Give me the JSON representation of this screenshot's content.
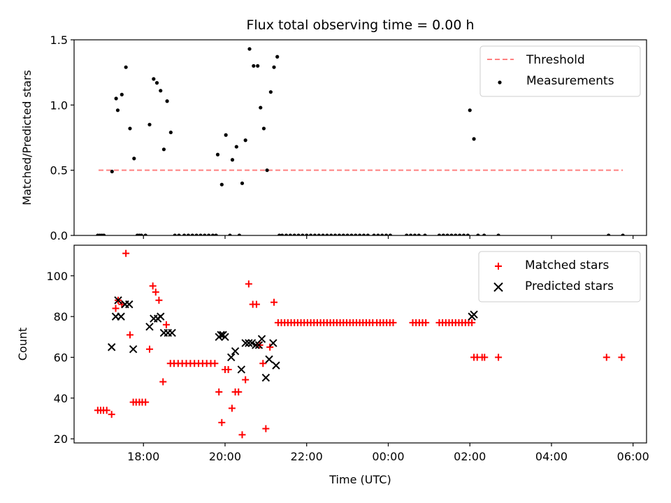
{
  "chart_data": [
    {
      "type": "scatter",
      "title": "Flux total observing time = 0.00 h",
      "xlabel": "",
      "ylabel": "Matched/Predicted stars",
      "x_ticks": [
        "18:00",
        "20:00",
        "22:00",
        "00:00",
        "02:00",
        "04:00",
        "06:00"
      ],
      "x_tick_hours": [
        18,
        20,
        22,
        24,
        26,
        28,
        30
      ],
      "xlim": [
        16.3,
        30.33
      ],
      "ylim": [
        0,
        1.5
      ],
      "y_ticks": [
        0.0,
        0.5,
        1.0,
        1.5
      ],
      "y_tick_labels": [
        "0.0",
        "0.5",
        "1.0",
        "1.5"
      ],
      "legend_position": "top-right",
      "threshold": {
        "name": "Threshold",
        "value": 0.5,
        "x_range": [
          16.9,
          29.75
        ],
        "color": "#ff8080"
      },
      "series": [
        {
          "name": "Measurements",
          "color": "#000000",
          "points": [
            [
              16.88,
              0
            ],
            [
              16.93,
              0
            ],
            [
              16.98,
              0
            ],
            [
              17.03,
              0
            ],
            [
              17.23,
              0.49
            ],
            [
              17.33,
              1.05
            ],
            [
              17.37,
              0.96
            ],
            [
              17.47,
              1.08
            ],
            [
              17.57,
              1.29
            ],
            [
              17.67,
              0.82
            ],
            [
              17.77,
              0.59
            ],
            [
              17.85,
              0
            ],
            [
              17.9,
              0
            ],
            [
              17.95,
              0
            ],
            [
              18.05,
              0
            ],
            [
              18.15,
              0.85
            ],
            [
              18.25,
              1.2
            ],
            [
              18.33,
              1.17
            ],
            [
              18.42,
              1.11
            ],
            [
              18.5,
              0.66
            ],
            [
              18.58,
              1.03
            ],
            [
              18.67,
              0.79
            ],
            [
              18.77,
              0
            ],
            [
              18.87,
              0
            ],
            [
              19.0,
              0
            ],
            [
              19.1,
              0
            ],
            [
              19.2,
              0
            ],
            [
              19.3,
              0
            ],
            [
              19.4,
              0
            ],
            [
              19.5,
              0
            ],
            [
              19.6,
              0
            ],
            [
              19.7,
              0
            ],
            [
              19.78,
              0
            ],
            [
              19.82,
              0.62
            ],
            [
              19.92,
              0.39
            ],
            [
              20.02,
              0.77
            ],
            [
              20.12,
              0
            ],
            [
              20.18,
              0.58
            ],
            [
              20.28,
              0.68
            ],
            [
              20.35,
              0
            ],
            [
              20.42,
              0.4
            ],
            [
              20.5,
              0.73
            ],
            [
              20.6,
              1.43
            ],
            [
              20.7,
              1.3
            ],
            [
              20.8,
              1.3
            ],
            [
              20.87,
              0.98
            ],
            [
              20.95,
              0.82
            ],
            [
              21.03,
              0.5
            ],
            [
              21.12,
              1.1
            ],
            [
              21.2,
              1.29
            ],
            [
              21.28,
              1.37
            ],
            [
              21.33,
              0
            ],
            [
              21.4,
              0
            ],
            [
              21.5,
              0
            ],
            [
              21.6,
              0
            ],
            [
              21.7,
              0
            ],
            [
              21.8,
              0
            ],
            [
              21.9,
              0
            ],
            [
              22.0,
              0
            ],
            [
              22.1,
              0
            ],
            [
              22.2,
              0
            ],
            [
              22.3,
              0
            ],
            [
              22.4,
              0
            ],
            [
              22.5,
              0
            ],
            [
              22.6,
              0
            ],
            [
              22.7,
              0
            ],
            [
              22.8,
              0
            ],
            [
              22.9,
              0
            ],
            [
              23.0,
              0
            ],
            [
              23.1,
              0
            ],
            [
              23.2,
              0
            ],
            [
              23.3,
              0
            ],
            [
              23.4,
              0
            ],
            [
              23.5,
              0
            ],
            [
              23.65,
              0
            ],
            [
              23.75,
              0
            ],
            [
              23.85,
              0
            ],
            [
              23.95,
              0
            ],
            [
              24.05,
              0
            ],
            [
              24.45,
              0
            ],
            [
              24.55,
              0
            ],
            [
              24.65,
              0
            ],
            [
              24.75,
              0
            ],
            [
              24.9,
              0
            ],
            [
              25.25,
              0
            ],
            [
              25.35,
              0
            ],
            [
              25.45,
              0
            ],
            [
              25.55,
              0
            ],
            [
              25.65,
              0
            ],
            [
              25.75,
              0
            ],
            [
              25.85,
              0
            ],
            [
              25.95,
              0
            ],
            [
              26.0,
              0.96
            ],
            [
              26.1,
              0.74
            ],
            [
              26.2,
              0
            ],
            [
              26.35,
              0
            ],
            [
              26.7,
              0
            ],
            [
              29.4,
              0
            ],
            [
              29.75,
              0
            ]
          ]
        }
      ]
    },
    {
      "type": "scatter",
      "title": "",
      "xlabel": "Time (UTC)",
      "ylabel": "Count",
      "x_ticks": [
        "18:00",
        "20:00",
        "22:00",
        "00:00",
        "02:00",
        "04:00",
        "06:00"
      ],
      "x_tick_hours": [
        18,
        20,
        22,
        24,
        26,
        28,
        30
      ],
      "xlim": [
        16.3,
        30.33
      ],
      "ylim": [
        18,
        115
      ],
      "y_ticks": [
        20,
        40,
        60,
        80,
        100
      ],
      "y_tick_labels": [
        "20",
        "40",
        "60",
        "80",
        "100"
      ],
      "legend_position": "top-right",
      "series": [
        {
          "name": "Matched stars",
          "marker": "plus",
          "color": "#ff0000",
          "points": [
            [
              16.88,
              34
            ],
            [
              16.95,
              34
            ],
            [
              17.02,
              34
            ],
            [
              17.1,
              34
            ],
            [
              17.22,
              32
            ],
            [
              17.32,
              84
            ],
            [
              17.38,
              88
            ],
            [
              17.47,
              86
            ],
            [
              17.57,
              111
            ],
            [
              17.67,
              71
            ],
            [
              17.75,
              38
            ],
            [
              17.82,
              38
            ],
            [
              17.9,
              38
            ],
            [
              17.97,
              38
            ],
            [
              18.05,
              38
            ],
            [
              18.15,
              64
            ],
            [
              18.23,
              95
            ],
            [
              18.3,
              92
            ],
            [
              18.38,
              88
            ],
            [
              18.48,
              48
            ],
            [
              18.56,
              76
            ],
            [
              18.66,
              57
            ],
            [
              18.75,
              57
            ],
            [
              18.85,
              57
            ],
            [
              18.95,
              57
            ],
            [
              19.05,
              57
            ],
            [
              19.15,
              57
            ],
            [
              19.25,
              57
            ],
            [
              19.35,
              57
            ],
            [
              19.45,
              57
            ],
            [
              19.55,
              57
            ],
            [
              19.65,
              57
            ],
            [
              19.75,
              57
            ],
            [
              19.85,
              43
            ],
            [
              19.92,
              28
            ],
            [
              20.0,
              54
            ],
            [
              20.08,
              54
            ],
            [
              20.17,
              35
            ],
            [
              20.25,
              43
            ],
            [
              20.33,
              43
            ],
            [
              20.42,
              22
            ],
            [
              20.5,
              49
            ],
            [
              20.58,
              96
            ],
            [
              20.68,
              86
            ],
            [
              20.77,
              86
            ],
            [
              20.85,
              66
            ],
            [
              20.93,
              57
            ],
            [
              21.0,
              25
            ],
            [
              21.1,
              65
            ],
            [
              21.2,
              87
            ],
            [
              21.3,
              77
            ],
            [
              21.38,
              77
            ],
            [
              21.46,
              77
            ],
            [
              21.54,
              77
            ],
            [
              21.62,
              77
            ],
            [
              21.7,
              77
            ],
            [
              21.78,
              77
            ],
            [
              21.86,
              77
            ],
            [
              21.94,
              77
            ],
            [
              22.02,
              77
            ],
            [
              22.1,
              77
            ],
            [
              22.18,
              77
            ],
            [
              22.26,
              77
            ],
            [
              22.34,
              77
            ],
            [
              22.42,
              77
            ],
            [
              22.5,
              77
            ],
            [
              22.58,
              77
            ],
            [
              22.66,
              77
            ],
            [
              22.74,
              77
            ],
            [
              22.82,
              77
            ],
            [
              22.9,
              77
            ],
            [
              22.98,
              77
            ],
            [
              23.06,
              77
            ],
            [
              23.14,
              77
            ],
            [
              23.22,
              77
            ],
            [
              23.3,
              77
            ],
            [
              23.38,
              77
            ],
            [
              23.46,
              77
            ],
            [
              23.54,
              77
            ],
            [
              23.62,
              77
            ],
            [
              23.72,
              77
            ],
            [
              23.8,
              77
            ],
            [
              23.88,
              77
            ],
            [
              23.96,
              77
            ],
            [
              24.04,
              77
            ],
            [
              24.12,
              77
            ],
            [
              24.6,
              77
            ],
            [
              24.68,
              77
            ],
            [
              24.76,
              77
            ],
            [
              24.84,
              77
            ],
            [
              24.92,
              77
            ],
            [
              25.25,
              77
            ],
            [
              25.33,
              77
            ],
            [
              25.41,
              77
            ],
            [
              25.49,
              77
            ],
            [
              25.57,
              77
            ],
            [
              25.65,
              77
            ],
            [
              25.73,
              77
            ],
            [
              25.81,
              77
            ],
            [
              25.89,
              77
            ],
            [
              25.97,
              77
            ],
            [
              26.05,
              77
            ],
            [
              26.1,
              60
            ],
            [
              26.18,
              60
            ],
            [
              26.3,
              60
            ],
            [
              26.36,
              60
            ],
            [
              26.7,
              60
            ],
            [
              29.35,
              60
            ],
            [
              29.72,
              60
            ]
          ]
        },
        {
          "name": "Predicted stars",
          "marker": "x",
          "color": "#000000",
          "points": [
            [
              17.22,
              65
            ],
            [
              17.32,
              80
            ],
            [
              17.38,
              88
            ],
            [
              17.45,
              80
            ],
            [
              17.55,
              86
            ],
            [
              17.65,
              86
            ],
            [
              17.75,
              64
            ],
            [
              18.15,
              75
            ],
            [
              18.25,
              79
            ],
            [
              18.35,
              79
            ],
            [
              18.42,
              80
            ],
            [
              18.5,
              72
            ],
            [
              18.6,
              72
            ],
            [
              18.7,
              72
            ],
            [
              19.85,
              70
            ],
            [
              19.9,
              71
            ],
            [
              19.95,
              71
            ],
            [
              20.0,
              70
            ],
            [
              20.15,
              60
            ],
            [
              20.25,
              63
            ],
            [
              20.4,
              54
            ],
            [
              20.5,
              67
            ],
            [
              20.58,
              67
            ],
            [
              20.66,
              67
            ],
            [
              20.75,
              66
            ],
            [
              20.83,
              66
            ],
            [
              20.9,
              69
            ],
            [
              21.0,
              50
            ],
            [
              21.08,
              59
            ],
            [
              21.18,
              67
            ],
            [
              21.25,
              56
            ],
            [
              26.05,
              80
            ],
            [
              26.1,
              81
            ]
          ]
        }
      ]
    }
  ]
}
